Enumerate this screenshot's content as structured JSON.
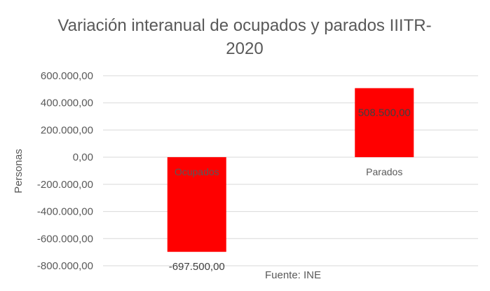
{
  "chart_data": {
    "type": "bar",
    "title_lines": [
      "Variación interanual de ocupados y parados IIITR-",
      "2020"
    ],
    "ylabel": "Personas",
    "source": "Fuente: INE",
    "categories": [
      "Ocupados",
      "Parados"
    ],
    "values": [
      -697500,
      508500
    ],
    "data_labels": [
      "-697.500,00",
      "508.500,00"
    ],
    "ylim": [
      -800000,
      600000
    ],
    "yticks": [
      600000,
      400000,
      200000,
      0,
      -200000,
      -400000,
      -600000,
      -800000
    ],
    "ytick_labels": [
      "600.000,00",
      "400.000,00",
      "200.000,00",
      "0,00",
      "-200.000,00",
      "-400.000,00",
      "-600.000,00",
      "-800.000,00"
    ],
    "grid": true,
    "legend": false,
    "bar_color": "#ff0000"
  }
}
